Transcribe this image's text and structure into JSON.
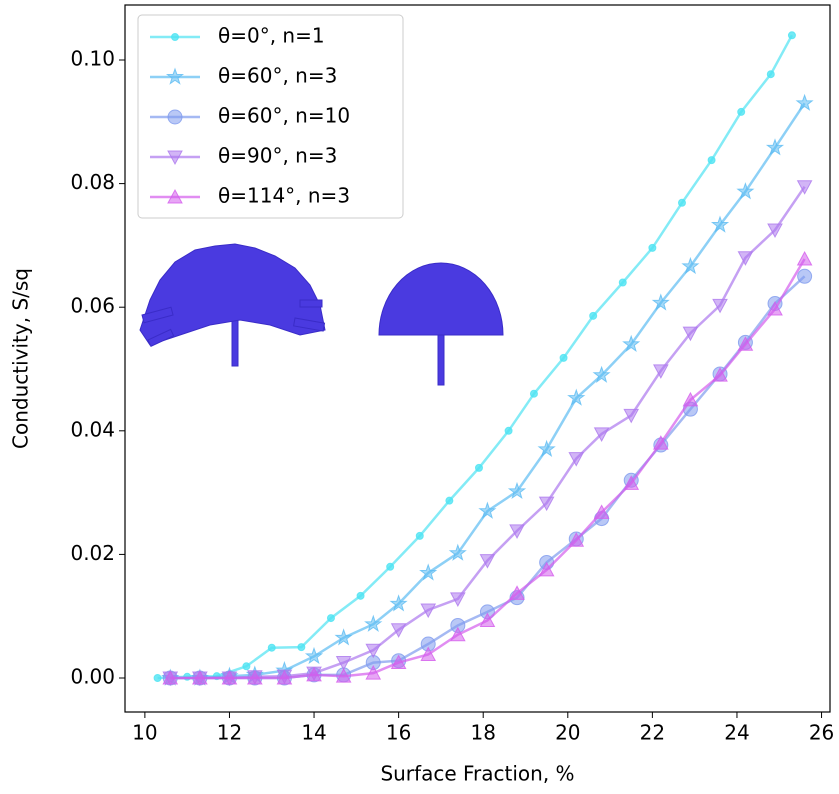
{
  "chart_data": {
    "type": "line",
    "xlabel": "Surface Fraction, %",
    "ylabel": "Conductivity, S/sq",
    "xlim": [
      9.53,
      26.2
    ],
    "ylim": [
      -0.0055,
      0.1089
    ],
    "xticks": [
      10,
      12,
      14,
      16,
      18,
      20,
      22,
      24,
      26
    ],
    "yticks": [
      {
        "value": 0,
        "label": "0.00"
      },
      {
        "value": 0.02,
        "label": "0.02"
      },
      {
        "value": 0.04,
        "label": "0.04"
      },
      {
        "value": 0.06,
        "label": "0.06"
      },
      {
        "value": 0.08,
        "label": "0.08"
      },
      {
        "value": 0.1,
        "label": "0.10"
      }
    ],
    "legend": "upper left",
    "series": [
      {
        "name": "θ=0°, n=1",
        "color": "#4fe3f2",
        "marker": "dot",
        "x": [
          10.3,
          11.0,
          11.7,
          12.4,
          13.0,
          13.7,
          14.4,
          15.1,
          15.8,
          16.5,
          17.2,
          17.9,
          18.6,
          19.2,
          19.9,
          20.6,
          21.3,
          22.0,
          22.7,
          23.4,
          24.1,
          24.8,
          25.3
        ],
        "values": [
          0,
          0.0002,
          0.0003,
          0.0019,
          0.0049,
          0.005,
          0.0097,
          0.0133,
          0.018,
          0.023,
          0.0287,
          0.034,
          0.04,
          0.046,
          0.0518,
          0.0586,
          0.064,
          0.0696,
          0.0769,
          0.0838,
          0.0916,
          0.0977,
          0.104
        ]
      },
      {
        "name": "θ=60°, n=3",
        "color": "#5cbcf2",
        "marker": "star",
        "x": [
          10.6,
          11.3,
          12.0,
          12.6,
          13.3,
          14.0,
          14.7,
          15.4,
          16.0,
          16.7,
          17.4,
          18.1,
          18.8,
          19.5,
          20.2,
          20.8,
          21.5,
          22.2,
          22.9,
          23.6,
          24.2,
          24.9,
          25.6
        ],
        "values": [
          0,
          0,
          0.0003,
          0.0005,
          0.0012,
          0.0035,
          0.0065,
          0.0087,
          0.012,
          0.017,
          0.0202,
          0.027,
          0.0302,
          0.037,
          0.0453,
          0.049,
          0.054,
          0.0607,
          0.0666,
          0.0733,
          0.0787,
          0.0858,
          0.093
        ]
      },
      {
        "name": "θ=60°, n=10",
        "color": "#7f9bee",
        "marker": "circle",
        "x": [
          10.6,
          11.3,
          12.0,
          12.6,
          13.3,
          14.0,
          14.7,
          15.4,
          16.0,
          16.7,
          17.4,
          18.1,
          18.8,
          19.5,
          20.2,
          20.8,
          21.5,
          22.2,
          22.9,
          23.6,
          24.2,
          24.9,
          25.6
        ],
        "values": [
          0,
          0,
          0,
          0,
          0,
          0.0005,
          0.0005,
          0.0025,
          0.0028,
          0.0055,
          0.0085,
          0.0107,
          0.013,
          0.0187,
          0.0225,
          0.0258,
          0.032,
          0.0377,
          0.0435,
          0.0492,
          0.0543,
          0.0606,
          0.065
        ]
      },
      {
        "name": "θ=90°, n=3",
        "color": "#ad78ee",
        "marker": "tri-down",
        "x": [
          10.6,
          11.3,
          12.0,
          12.6,
          13.3,
          14.0,
          14.7,
          15.4,
          16.0,
          16.7,
          17.4,
          18.1,
          18.8,
          19.5,
          20.2,
          20.8,
          21.5,
          22.2,
          22.9,
          23.6,
          24.2,
          24.9,
          25.6
        ],
        "values": [
          0,
          0,
          0,
          0.0002,
          0.0003,
          0.0008,
          0.0025,
          0.0045,
          0.0078,
          0.011,
          0.0128,
          0.019,
          0.0238,
          0.0283,
          0.0355,
          0.0395,
          0.0425,
          0.0497,
          0.0558,
          0.0603,
          0.068,
          0.0725,
          0.0795
        ]
      },
      {
        "name": "θ=114°, n=3",
        "color": "#d45cec",
        "marker": "tri-up",
        "x": [
          10.6,
          11.3,
          12.0,
          12.6,
          13.3,
          14.0,
          14.7,
          15.4,
          16.0,
          16.7,
          17.4,
          18.1,
          18.8,
          19.5,
          20.2,
          20.8,
          21.5,
          22.2,
          22.9,
          23.6,
          24.2,
          24.9,
          25.6
        ],
        "values": [
          0,
          0,
          0,
          0,
          0,
          0.0005,
          0.0003,
          0.0008,
          0.0025,
          0.0038,
          0.007,
          0.0093,
          0.0137,
          0.0175,
          0.0223,
          0.0268,
          0.0315,
          0.038,
          0.045,
          0.049,
          0.054,
          0.0597,
          0.0678
        ]
      }
    ]
  }
}
